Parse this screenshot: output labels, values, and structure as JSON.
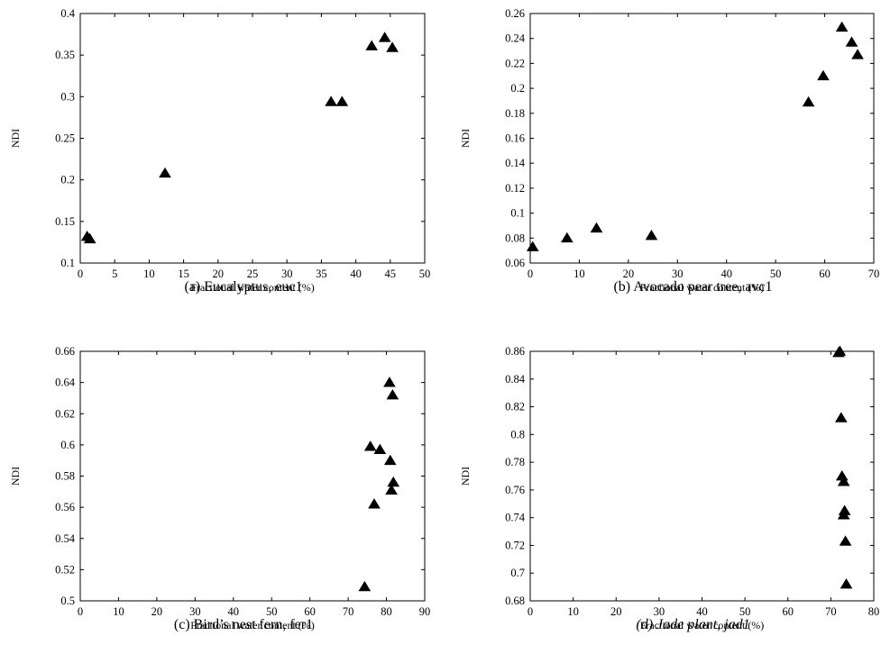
{
  "chart_data": [
    {
      "type": "scatter",
      "caption": "(a) Eucalyptus, euc1",
      "caption_italic": false,
      "xlabel": "Fractional water content (%)",
      "ylabel": "NDI",
      "xlim": [
        0,
        50
      ],
      "ylim": [
        0.1,
        0.4
      ],
      "xticks": [
        "0",
        "5",
        "10",
        "15",
        "20",
        "25",
        "30",
        "35",
        "40",
        "45",
        "50"
      ],
      "yticks": [
        "0.1",
        "0.15",
        "0.2",
        "0.25",
        "0.3",
        "0.35",
        "0.4"
      ],
      "marker": "triangle",
      "points": [
        {
          "x": 1.0,
          "y": 0.132
        },
        {
          "x": 1.4,
          "y": 0.129
        },
        {
          "x": 12.3,
          "y": 0.208
        },
        {
          "x": 36.4,
          "y": 0.294
        },
        {
          "x": 38.0,
          "y": 0.294
        },
        {
          "x": 42.3,
          "y": 0.361
        },
        {
          "x": 44.2,
          "y": 0.371
        },
        {
          "x": 45.3,
          "y": 0.359
        }
      ]
    },
    {
      "type": "scatter",
      "caption": "(b) Avocado pear tree, avc1",
      "caption_italic": false,
      "xlabel": "Fractional water content (%)",
      "ylabel": "NDI",
      "xlim": [
        0,
        70
      ],
      "ylim": [
        0.06,
        0.26
      ],
      "xticks": [
        "0",
        "10",
        "20",
        "30",
        "40",
        "50",
        "60",
        "70"
      ],
      "yticks": [
        "0.06",
        "0.08",
        "0.1",
        "0.12",
        "0.14",
        "0.16",
        "0.18",
        "0.2",
        "0.22",
        "0.24",
        "0.26"
      ],
      "marker": "triangle",
      "points": [
        {
          "x": 0.5,
          "y": 0.073
        },
        {
          "x": 7.5,
          "y": 0.08
        },
        {
          "x": 13.5,
          "y": 0.088
        },
        {
          "x": 24.7,
          "y": 0.082
        },
        {
          "x": 56.7,
          "y": 0.189
        },
        {
          "x": 59.7,
          "y": 0.21
        },
        {
          "x": 63.5,
          "y": 0.249
        },
        {
          "x": 65.5,
          "y": 0.237
        },
        {
          "x": 66.7,
          "y": 0.227
        }
      ]
    },
    {
      "type": "scatter",
      "caption": "(c) Bird’s nest fern, fer1",
      "caption_italic": false,
      "xlabel": "Fractional water content (%)",
      "ylabel": "NDI",
      "xlim": [
        0,
        90
      ],
      "ylim": [
        0.5,
        0.66
      ],
      "xticks": [
        "0",
        "10",
        "20",
        "30",
        "40",
        "50",
        "60",
        "70",
        "80",
        "90"
      ],
      "yticks": [
        "0.5",
        "0.52",
        "0.54",
        "0.56",
        "0.58",
        "0.6",
        "0.62",
        "0.64",
        "0.66"
      ],
      "marker": "triangle",
      "points": [
        {
          "x": 74.3,
          "y": 0.509
        },
        {
          "x": 75.8,
          "y": 0.599
        },
        {
          "x": 76.8,
          "y": 0.562
        },
        {
          "x": 78.3,
          "y": 0.597
        },
        {
          "x": 80.8,
          "y": 0.64
        },
        {
          "x": 81.0,
          "y": 0.59
        },
        {
          "x": 81.3,
          "y": 0.571
        },
        {
          "x": 81.6,
          "y": 0.632
        },
        {
          "x": 81.8,
          "y": 0.576
        }
      ]
    },
    {
      "type": "scatter",
      "caption": "(d) Jade plant, jad1",
      "caption_italic": true,
      "xlabel": "Fractional water content (%)",
      "ylabel": "NDI",
      "xlim": [
        0,
        80
      ],
      "ylim": [
        0.68,
        0.86
      ],
      "xticks": [
        "0",
        "10",
        "20",
        "30",
        "40",
        "50",
        "60",
        "70",
        "80"
      ],
      "yticks": [
        "0.68",
        "0.7",
        "0.72",
        "0.74",
        "0.76",
        "0.78",
        "0.8",
        "0.82",
        "0.84",
        "0.86"
      ],
      "marker": "triangle",
      "points": [
        {
          "x": 71.8,
          "y": 0.859
        },
        {
          "x": 72.1,
          "y": 0.86
        },
        {
          "x": 72.4,
          "y": 0.812
        },
        {
          "x": 72.6,
          "y": 0.77
        },
        {
          "x": 73.0,
          "y": 0.766
        },
        {
          "x": 73.0,
          "y": 0.742
        },
        {
          "x": 73.2,
          "y": 0.745
        },
        {
          "x": 73.4,
          "y": 0.723
        },
        {
          "x": 73.6,
          "y": 0.692
        }
      ]
    }
  ]
}
